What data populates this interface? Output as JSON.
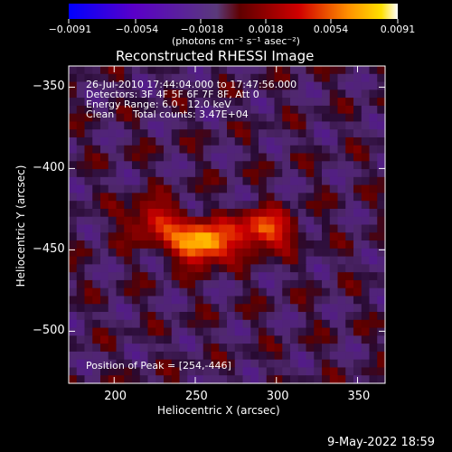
{
  "chart_data": {
    "type": "heatmap",
    "title": "Reconstructed RHESSI Image",
    "xlabel": "Heliocentric X (arcsec)",
    "ylabel": "Heliocentric Y (arcsec)",
    "xlim": [
      172,
      367
    ],
    "ylim": [
      -532,
      -337
    ],
    "x_ticks": [
      "200",
      "250",
      "300",
      "350"
    ],
    "x_tick_values": [
      200,
      250,
      300,
      350
    ],
    "y_ticks": [
      "-350",
      "-400",
      "-450",
      "-500"
    ],
    "y_tick_values": [
      -350,
      -400,
      -450,
      -500
    ],
    "colorbar": {
      "ticks": [
        "-0.0091",
        "-0.0054",
        "-0.0018",
        "0.0018",
        "0.0054",
        "0.0091"
      ],
      "tick_values": [
        -0.0091,
        -0.0054,
        -0.0018,
        0.0018,
        0.0054,
        0.0091
      ],
      "range": [
        -0.0091,
        0.0091
      ],
      "units": "(photons cm⁻² s⁻¹ asec⁻²)",
      "colormap": [
        "#0000ff",
        "#6a00c8",
        "#6a2a8a",
        "#7a0000",
        "#c80000",
        "#ff8000",
        "#ffd000",
        "#ffffff"
      ]
    },
    "annotations": {
      "time_range": "26-Jul-2010 17:44:04.000 to 17:47:56.000",
      "detectors": "Detectors: 3F 4F 5F 6F 7F 8F, Att 0",
      "energy": "Energy Range: 6.0 - 12.0 keV",
      "method": "Clean",
      "counts": "Total counts: 3.47E+04",
      "peak": "Position of Peak = [254,-446]"
    },
    "peak": {
      "x": 254,
      "y": -446
    },
    "sources": [
      {
        "x": 254,
        "y": -446,
        "peak": 0.0091
      },
      {
        "x": 292,
        "y": -438,
        "peak": 0.0062
      },
      {
        "x": 225,
        "y": -432,
        "peak": 0.0045
      }
    ]
  },
  "footer": {
    "date": "9-May-2022 18:59"
  }
}
